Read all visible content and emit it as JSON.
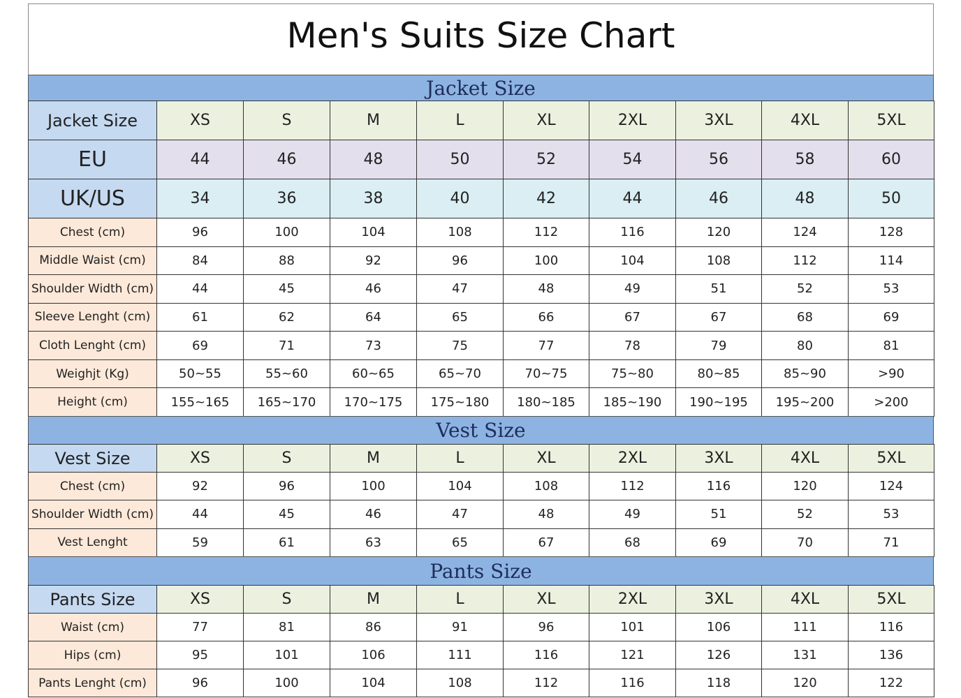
{
  "title": "Men's Suits Size Chart",
  "sections": [
    {
      "heading": "Jacket Size",
      "header": [
        "Jacket Size",
        "XS",
        "S",
        "M",
        "L",
        "XL",
        "2XL",
        "3XL",
        "4XL",
        "5XL"
      ],
      "rows": [
        [
          "EU",
          "44",
          "46",
          "48",
          "50",
          "52",
          "54",
          "56",
          "58",
          "60"
        ],
        [
          "UK/US",
          "34",
          "36",
          "38",
          "40",
          "42",
          "44",
          "46",
          "48",
          "50"
        ],
        [
          "Chest (cm)",
          "96",
          "100",
          "104",
          "108",
          "112",
          "116",
          "120",
          "124",
          "128"
        ],
        [
          "Middle Waist (cm)",
          "84",
          "88",
          "92",
          "96",
          "100",
          "104",
          "108",
          "112",
          "114"
        ],
        [
          "Shoulder Width (cm)",
          "44",
          "45",
          "46",
          "47",
          "48",
          "49",
          "51",
          "52",
          "53"
        ],
        [
          "Sleeve Lenght (cm)",
          "61",
          "62",
          "64",
          "65",
          "66",
          "67",
          "67",
          "68",
          "69"
        ],
        [
          "Cloth Lenght (cm)",
          "69",
          "71",
          "73",
          "75",
          "77",
          "78",
          "79",
          "80",
          "81"
        ],
        [
          "Weighjt (Kg)",
          "50~55",
          "55~60",
          "60~65",
          "65~70",
          "70~75",
          "75~80",
          "80~85",
          "85~90",
          ">90"
        ],
        [
          "Height (cm)",
          "155~165",
          "165~170",
          "170~175",
          "175~180",
          "180~185",
          "185~190",
          "190~195",
          "195~200",
          ">200"
        ]
      ]
    },
    {
      "heading": "Vest Size",
      "header": [
        "Vest Size",
        "XS",
        "S",
        "M",
        "L",
        "XL",
        "2XL",
        "3XL",
        "4XL",
        "5XL"
      ],
      "rows": [
        [
          "Chest (cm)",
          "92",
          "96",
          "100",
          "104",
          "108",
          "112",
          "116",
          "120",
          "124"
        ],
        [
          "Shoulder Width (cm)",
          "44",
          "45",
          "46",
          "47",
          "48",
          "49",
          "51",
          "52",
          "53"
        ],
        [
          "Vest Lenght",
          "59",
          "61",
          "63",
          "65",
          "67",
          "68",
          "69",
          "70",
          "71"
        ]
      ]
    },
    {
      "heading": "Pants Size",
      "header": [
        "Pants Size",
        "XS",
        "S",
        "M",
        "L",
        "XL",
        "2XL",
        "3XL",
        "4XL",
        "5XL"
      ],
      "rows": [
        [
          "Waist (cm)",
          "77",
          "81",
          "86",
          "91",
          "96",
          "101",
          "106",
          "111",
          "116"
        ],
        [
          "Hips (cm)",
          "95",
          "101",
          "106",
          "111",
          "116",
          "121",
          "126",
          "131",
          "136"
        ],
        [
          "Pants Lenght (cm)",
          "96",
          "100",
          "104",
          "108",
          "112",
          "116",
          "118",
          "120",
          "122"
        ]
      ]
    }
  ]
}
